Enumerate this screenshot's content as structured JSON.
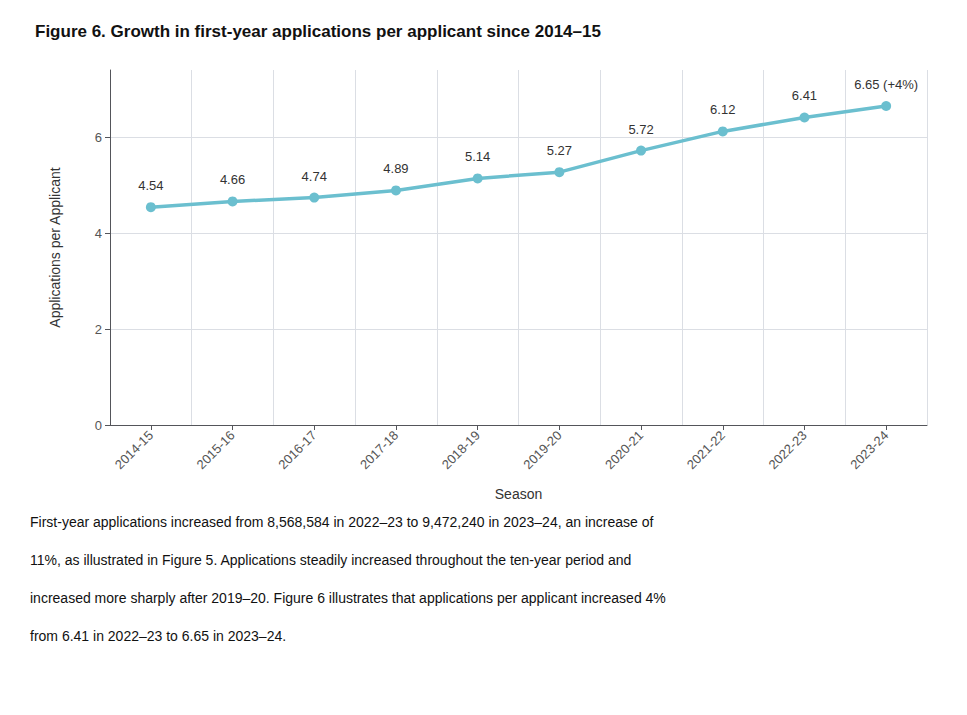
{
  "chart_data": {
    "type": "line",
    "title": "Figure 6. Growth in first-year applications per applicant since 2014–15",
    "xlabel": "Season",
    "ylabel": "Applications per Applicant",
    "categories": [
      "2014-15",
      "2015-16",
      "2016-17",
      "2017-18",
      "2018-19",
      "2019-20",
      "2020-21",
      "2021-22",
      "2022-23",
      "2023-24"
    ],
    "values": [
      4.54,
      4.66,
      4.74,
      4.89,
      5.14,
      5.27,
      5.72,
      6.12,
      6.41,
      6.65
    ],
    "value_labels": [
      "4.54",
      "4.66",
      "4.74",
      "4.89",
      "5.14",
      "5.27",
      "5.72",
      "6.12",
      "6.41",
      "6.65 (+4%)"
    ],
    "data_labels": true,
    "color": "#6bbfcf",
    "marker": "circle",
    "ylim": [
      0,
      7.4
    ],
    "yticks": [
      0,
      2,
      4,
      6
    ],
    "grid": true,
    "caption": [
      "First-year applications increased from 8,568,584 in 2022–23 to 9,472,240 in 2023–24, an increase of",
      "11%, as illustrated in Figure 5. Applications steadily increased throughout the ten-year period and",
      "increased more sharply after 2019–20. Figure 6 illustrates that applications per applicant increased 4%",
      "from 6.41 in 2022–23 to 6.65 in 2023–24."
    ]
  }
}
